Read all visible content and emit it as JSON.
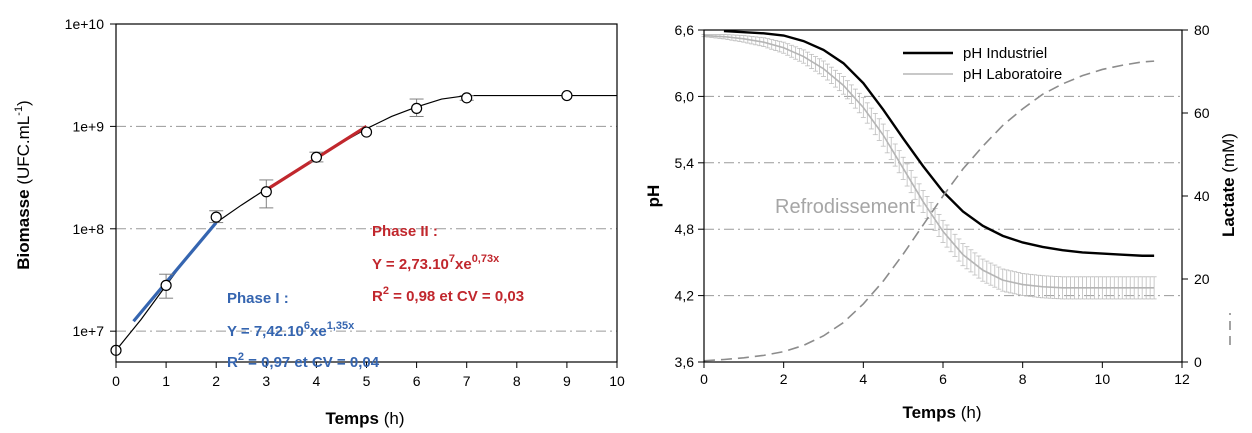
{
  "chart_data": [
    {
      "type": "scatter",
      "x": {
        "label_bold": "Temps",
        "label_unit": "(h)",
        "lim": [
          0,
          10
        ],
        "ticks": [
          0,
          1,
          2,
          3,
          4,
          5,
          6,
          7,
          8,
          9,
          10
        ]
      },
      "y": {
        "label_bold": "Biomasse",
        "label_unit_pre": "(UFC.mL",
        "label_unit_sup": "-1",
        "label_unit_post": ")",
        "scale": "log",
        "lim": [
          5000000,
          10000000000
        ],
        "ticks": [
          10000000,
          100000000,
          1000000000,
          10000000000
        ],
        "tick_labels": [
          "1e+7",
          "1e+8",
          "1e+9",
          "1e+10"
        ]
      },
      "grid": "horizontal dash-dot",
      "points": [
        {
          "x": 0,
          "y": 6500000
        },
        {
          "x": 1,
          "y": 28000000,
          "err": [
            21000000,
            36000000
          ]
        },
        {
          "x": 2,
          "y": 130000000,
          "err": [
            115000000,
            150000000
          ]
        },
        {
          "x": 3,
          "y": 230000000,
          "err": [
            160000000,
            300000000
          ]
        },
        {
          "x": 4,
          "y": 500000000,
          "err": [
            450000000,
            560000000
          ]
        },
        {
          "x": 5,
          "y": 880000000
        },
        {
          "x": 6,
          "y": 1500000000,
          "err": [
            1250000000,
            1850000000
          ]
        },
        {
          "x": 7,
          "y": 1900000000,
          "err": [
            1800000000,
            2000000000
          ]
        },
        {
          "x": 9,
          "y": 2000000000
        }
      ],
      "fit_curve": [
        {
          "x": 0,
          "y": 6500000
        },
        {
          "x": 0.5,
          "y": 13000000
        },
        {
          "x": 1,
          "y": 28000000
        },
        {
          "x": 1.5,
          "y": 60000000
        },
        {
          "x": 2,
          "y": 115000000
        },
        {
          "x": 2.5,
          "y": 170000000
        },
        {
          "x": 3,
          "y": 245000000
        },
        {
          "x": 3.5,
          "y": 350000000
        },
        {
          "x": 4,
          "y": 490000000
        },
        {
          "x": 4.5,
          "y": 690000000
        },
        {
          "x": 5,
          "y": 950000000
        },
        {
          "x": 5.5,
          "y": 1250000000
        },
        {
          "x": 6,
          "y": 1550000000
        },
        {
          "x": 6.5,
          "y": 1850000000
        },
        {
          "x": 7,
          "y": 2000000000
        },
        {
          "x": 10,
          "y": 2000000000
        }
      ],
      "phases": [
        {
          "name": "Phase I :",
          "color": "#3565b0",
          "x_start": 0.35,
          "x_end": 2.0,
          "y_start": 12500000,
          "y_end": 115000000,
          "eq_main": "Y = 7,42.10",
          "eq_exp1": "6",
          "eq_mid": "xe",
          "eq_exp2": "1,35x",
          "r2_pre": "R",
          "r2_sup": "2",
          "r2_post": " = 0,97 et CV = 0,04"
        },
        {
          "name": "Phase II :",
          "color": "#c1272d",
          "x_start": 3.0,
          "x_end": 5.0,
          "y_start": 240000000,
          "y_end": 1000000000,
          "eq_main": "Y = 2,73.10",
          "eq_exp1": "7",
          "eq_mid": "xe",
          "eq_exp2": "0,73x",
          "r2_pre": "R",
          "r2_sup": "2",
          "r2_post": " = 0,98 et CV = 0,03"
        }
      ]
    },
    {
      "type": "line",
      "x": {
        "label_bold": "Temps",
        "label_unit": "(h)",
        "lim": [
          0,
          12
        ],
        "ticks": [
          0,
          2,
          4,
          6,
          8,
          10,
          12
        ]
      },
      "y_left": {
        "label": "pH",
        "lim": [
          3.6,
          6.6
        ],
        "ticks": [
          3.6,
          4.2,
          4.8,
          5.4,
          6.0,
          6.6
        ],
        "tick_labels": [
          "3,6",
          "4,2",
          "4,8",
          "5,4",
          "6,0",
          "6,6"
        ]
      },
      "y_right": {
        "label_bold": "Lactate",
        "label_unit": "(mM)",
        "lim": [
          0,
          80
        ],
        "ticks": [
          0,
          20,
          40,
          60,
          80
        ],
        "tick_labels": [
          "0",
          "20",
          "40",
          "60",
          "80"
        ]
      },
      "grid": "horizontal dash-dot",
      "annotation": "Refrodissement",
      "legend": {
        "position": "top-right",
        "entries": [
          "pH Industriel",
          "pH Laboratoire"
        ]
      },
      "series": [
        {
          "name": "pH Industriel",
          "color": "#000000",
          "axis": "left",
          "x": [
            0.5,
            1,
            1.5,
            2,
            2.5,
            3,
            3.5,
            4,
            4.5,
            5,
            5.5,
            6,
            6.5,
            7,
            7.5,
            8,
            8.5,
            9,
            9.5,
            10,
            10.5,
            11,
            11.3
          ],
          "y": [
            6.59,
            6.58,
            6.57,
            6.55,
            6.5,
            6.42,
            6.3,
            6.12,
            5.88,
            5.62,
            5.37,
            5.14,
            4.96,
            4.83,
            4.74,
            4.68,
            4.64,
            4.61,
            4.59,
            4.58,
            4.57,
            4.56,
            4.56
          ]
        },
        {
          "name": "pH Laboratoire",
          "color": "#b5b5b5",
          "axis": "left",
          "x": [
            0,
            0.5,
            1,
            1.5,
            2,
            2.5,
            3,
            3.5,
            4,
            4.5,
            5,
            5.5,
            6,
            6.5,
            7,
            7.5,
            8,
            8.5,
            9,
            9.5,
            10,
            10.5,
            11,
            11.3
          ],
          "y": [
            6.55,
            6.54,
            6.52,
            6.49,
            6.44,
            6.36,
            6.25,
            6.1,
            5.9,
            5.65,
            5.35,
            5.05,
            4.78,
            4.57,
            4.43,
            4.34,
            4.3,
            4.28,
            4.27,
            4.27,
            4.27,
            4.27,
            4.27,
            4.27
          ],
          "err": [
            0.01,
            0.02,
            0.03,
            0.04,
            0.05,
            0.06,
            0.07,
            0.08,
            0.09,
            0.1,
            0.1,
            0.1,
            0.1,
            0.1,
            0.1,
            0.1,
            0.1,
            0.1,
            0.1,
            0.1,
            0.1,
            0.1,
            0.1,
            0.1
          ]
        },
        {
          "name": "Lactate",
          "color": "#8c8c8c",
          "axis": "right",
          "dash": true,
          "x": [
            0,
            0.5,
            1,
            1.5,
            2,
            2.5,
            3,
            3.5,
            4,
            4.5,
            5,
            5.5,
            6,
            6.5,
            7,
            7.5,
            8,
            8.5,
            9,
            9.5,
            10,
            10.5,
            11,
            11.3
          ],
          "y": [
            0.3,
            0.6,
            1,
            1.6,
            2.5,
            4,
            6.3,
            9.5,
            14,
            19.5,
            26,
            33,
            40,
            46.5,
            52,
            57,
            61,
            64.5,
            67,
            69,
            70.5,
            71.5,
            72.3,
            72.5
          ]
        }
      ]
    }
  ]
}
